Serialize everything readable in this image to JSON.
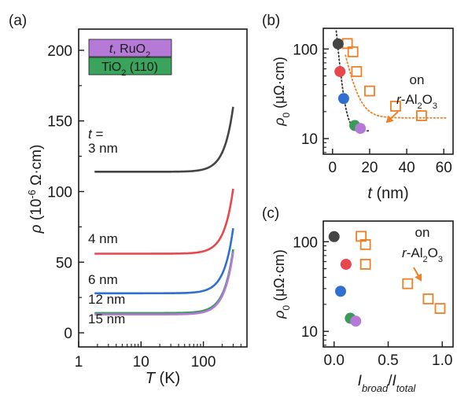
{
  "panel_labels": [
    "(a)",
    "(b)",
    "(c)"
  ],
  "colors": {
    "3nm": "#444444",
    "4nm": "#e8474d",
    "6nm": "#2f6fcf",
    "12nm": "#3a9a58",
    "15nm": "#b57ad8",
    "orange": "#f07f25",
    "legend_ru": "#b57ad8",
    "legend_ti": "#3aa35c"
  },
  "legend": {
    "top_italic": "t",
    "top_rest": ", RuO",
    "top_sub": "2",
    "bottom_main": "TiO",
    "bottom_sub": "2",
    "bottom_rest": " (110)"
  },
  "chart_data": [
    {
      "type": "line",
      "panel": "(a)",
      "xlabel": "T (K)",
      "ylabel": "ρ (10⁻⁶ Ω·cm)",
      "x_scale": "log",
      "xlim": [
        1,
        500
      ],
      "ylim": [
        -10,
        215
      ],
      "x_ticks": [
        "1",
        "10",
        "100"
      ],
      "y_ticks": [
        "0",
        "50",
        "100",
        "150",
        "200"
      ],
      "series_label_prefix": "t =",
      "series": [
        {
          "name": "3 nm",
          "rho0": 114,
          "a": 46
        },
        {
          "name": "4 nm",
          "rho0": 56,
          "a": 46
        },
        {
          "name": "6 nm",
          "rho0": 28,
          "a": 46
        },
        {
          "name": "12 nm",
          "rho0": 14,
          "a": 45
        },
        {
          "name": "15 nm",
          "rho0": 13,
          "a": 44
        }
      ]
    },
    {
      "type": "scatter",
      "panel": "(b)",
      "xlabel": "t (nm)",
      "ylabel": "ρ0 (μΩ·cm)",
      "y_scale": "log",
      "xlim": [
        -5,
        65
      ],
      "ylim": [
        6.7,
        170
      ],
      "x_ticks": [
        "0",
        "20",
        "40",
        "60"
      ],
      "y_ticks": [
        "10",
        "100"
      ],
      "annotation": {
        "line1": "on",
        "line2_prefix": "r",
        "line2_rest": "-Al",
        "sub1": "2",
        "mid": "O",
        "sub2": "3"
      },
      "series": [
        {
          "points": [
            [
              3,
              114
            ],
            [
              4,
              56
            ],
            [
              6,
              28
            ],
            [
              12,
              14
            ],
            [
              15,
              13
            ]
          ]
        },
        {
          "points": [
            [
              8,
              115
            ],
            [
              11,
              93
            ],
            [
              13,
              56
            ],
            [
              20,
              34
            ],
            [
              34,
              23
            ],
            [
              48,
              18
            ]
          ]
        }
      ]
    },
    {
      "type": "scatter",
      "panel": "(c)",
      "xlabel": "Ibroad/Itotal",
      "ylabel": "ρ0 (μΩ·cm)",
      "y_scale": "log",
      "xlim": [
        -0.1,
        1.1
      ],
      "ylim": [
        6.7,
        170
      ],
      "x_ticks": [
        "0.0",
        "0.5",
        "1.0"
      ],
      "y_ticks": [
        "10",
        "100"
      ],
      "annotation": {
        "line1": "on",
        "line2_prefix": "r",
        "line2_rest": "-Al",
        "sub1": "2",
        "mid": "O",
        "sub2": "3"
      },
      "series": [
        {
          "points": [
            [
              0.0,
              114
            ],
            [
              0.11,
              56
            ],
            [
              0.06,
              28
            ],
            [
              0.15,
              14
            ],
            [
              0.2,
              13
            ]
          ]
        },
        {
          "points": [
            [
              0.25,
              115
            ],
            [
              0.29,
              93
            ],
            [
              0.29,
              56
            ],
            [
              0.68,
              34
            ],
            [
              0.87,
              23
            ],
            [
              0.98,
              18
            ]
          ]
        }
      ]
    }
  ]
}
